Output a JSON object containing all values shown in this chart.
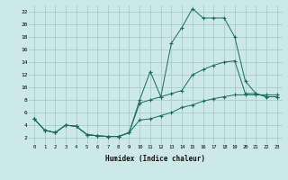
{
  "xlabel": "Humidex (Indice chaleur)",
  "background_color": "#cce8e8",
  "grid_color": "#aacccc",
  "line_color": "#1a6b5a",
  "xlim": [
    -0.5,
    23.5
  ],
  "ylim": [
    1,
    23
  ],
  "yticks": [
    2,
    4,
    6,
    8,
    10,
    12,
    14,
    16,
    18,
    20,
    22
  ],
  "xticks": [
    0,
    1,
    2,
    3,
    4,
    5,
    6,
    7,
    8,
    9,
    10,
    11,
    12,
    13,
    14,
    15,
    16,
    17,
    18,
    19,
    20,
    21,
    22,
    23
  ],
  "line1_x": [
    0,
    1,
    2,
    3,
    4,
    5,
    6,
    7,
    8,
    9,
    10,
    11,
    12,
    13,
    14,
    15,
    16,
    17,
    18,
    19,
    20,
    21,
    22,
    23
  ],
  "line1_y": [
    5.0,
    3.2,
    2.8,
    4.0,
    3.8,
    2.5,
    2.3,
    2.2,
    2.2,
    2.8,
    4.8,
    5.0,
    5.5,
    6.0,
    6.8,
    7.2,
    7.8,
    8.2,
    8.5,
    8.8,
    8.8,
    8.8,
    8.8,
    8.8
  ],
  "line2_x": [
    0,
    1,
    2,
    3,
    4,
    5,
    6,
    7,
    8,
    9,
    10,
    11,
    12,
    13,
    14,
    15,
    16,
    17,
    18,
    19,
    20,
    21,
    22,
    23
  ],
  "line2_y": [
    5.0,
    3.2,
    2.8,
    4.0,
    3.8,
    2.5,
    2.3,
    2.2,
    2.2,
    2.8,
    7.5,
    8.0,
    8.5,
    9.0,
    9.5,
    12.0,
    12.8,
    13.5,
    14.0,
    14.2,
    9.0,
    9.0,
    8.5,
    8.5
  ],
  "line3_x": [
    0,
    1,
    2,
    3,
    4,
    5,
    6,
    7,
    8,
    9,
    10,
    11,
    12,
    13,
    14,
    15,
    16,
    17,
    18,
    19,
    20,
    21,
    22,
    23
  ],
  "line3_y": [
    5.0,
    3.2,
    2.8,
    4.0,
    3.8,
    2.5,
    2.3,
    2.2,
    2.2,
    2.8,
    8.0,
    12.5,
    8.5,
    17.0,
    19.5,
    22.5,
    21.0,
    21.0,
    21.0,
    18.0,
    11.0,
    9.0,
    8.5,
    8.5
  ]
}
